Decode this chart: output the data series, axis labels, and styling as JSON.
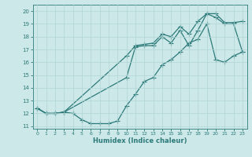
{
  "xlabel": "Humidex (Indice chaleur)",
  "bg_color": "#cce8e8",
  "line_color": "#2d7a7a",
  "grid_color": "#b0d4d4",
  "xlim": [
    -0.5,
    23.5
  ],
  "ylim": [
    10.8,
    20.5
  ],
  "xticks": [
    0,
    1,
    2,
    3,
    4,
    5,
    6,
    7,
    8,
    9,
    10,
    11,
    12,
    13,
    14,
    15,
    16,
    17,
    18,
    19,
    20,
    21,
    22,
    23
  ],
  "yticks": [
    11,
    12,
    13,
    14,
    15,
    16,
    17,
    18,
    19,
    20
  ],
  "line1_x": [
    0,
    1,
    2,
    3,
    4,
    5,
    6,
    7,
    8,
    9,
    10,
    11,
    12,
    13,
    14,
    15,
    16,
    17,
    18,
    19,
    20,
    21,
    22,
    23
  ],
  "line1_y": [
    12.4,
    12.0,
    12.0,
    12.1,
    12.0,
    11.5,
    11.2,
    11.2,
    11.2,
    11.4,
    12.6,
    13.5,
    14.5,
    14.8,
    15.8,
    16.2,
    16.8,
    17.5,
    17.8,
    19.0,
    16.2,
    16.0,
    16.5,
    16.8
  ],
  "line2_x": [
    0,
    1,
    2,
    3,
    10,
    11,
    12,
    13,
    14,
    15,
    16,
    17,
    18,
    19,
    20,
    21,
    22,
    23
  ],
  "line2_y": [
    12.4,
    12.0,
    12.0,
    12.1,
    16.5,
    17.3,
    17.4,
    17.5,
    18.2,
    18.0,
    18.8,
    18.2,
    19.2,
    19.8,
    19.8,
    19.1,
    19.1,
    19.2
  ],
  "line3_x": [
    0,
    1,
    2,
    3,
    10,
    11,
    12,
    13,
    14,
    15,
    16,
    17,
    18,
    19,
    20,
    21,
    22,
    23
  ],
  "line3_y": [
    12.4,
    12.0,
    12.0,
    12.1,
    14.8,
    17.2,
    17.3,
    17.3,
    18.0,
    17.5,
    18.5,
    17.3,
    18.5,
    19.8,
    19.5,
    19.0,
    19.0,
    16.8
  ]
}
